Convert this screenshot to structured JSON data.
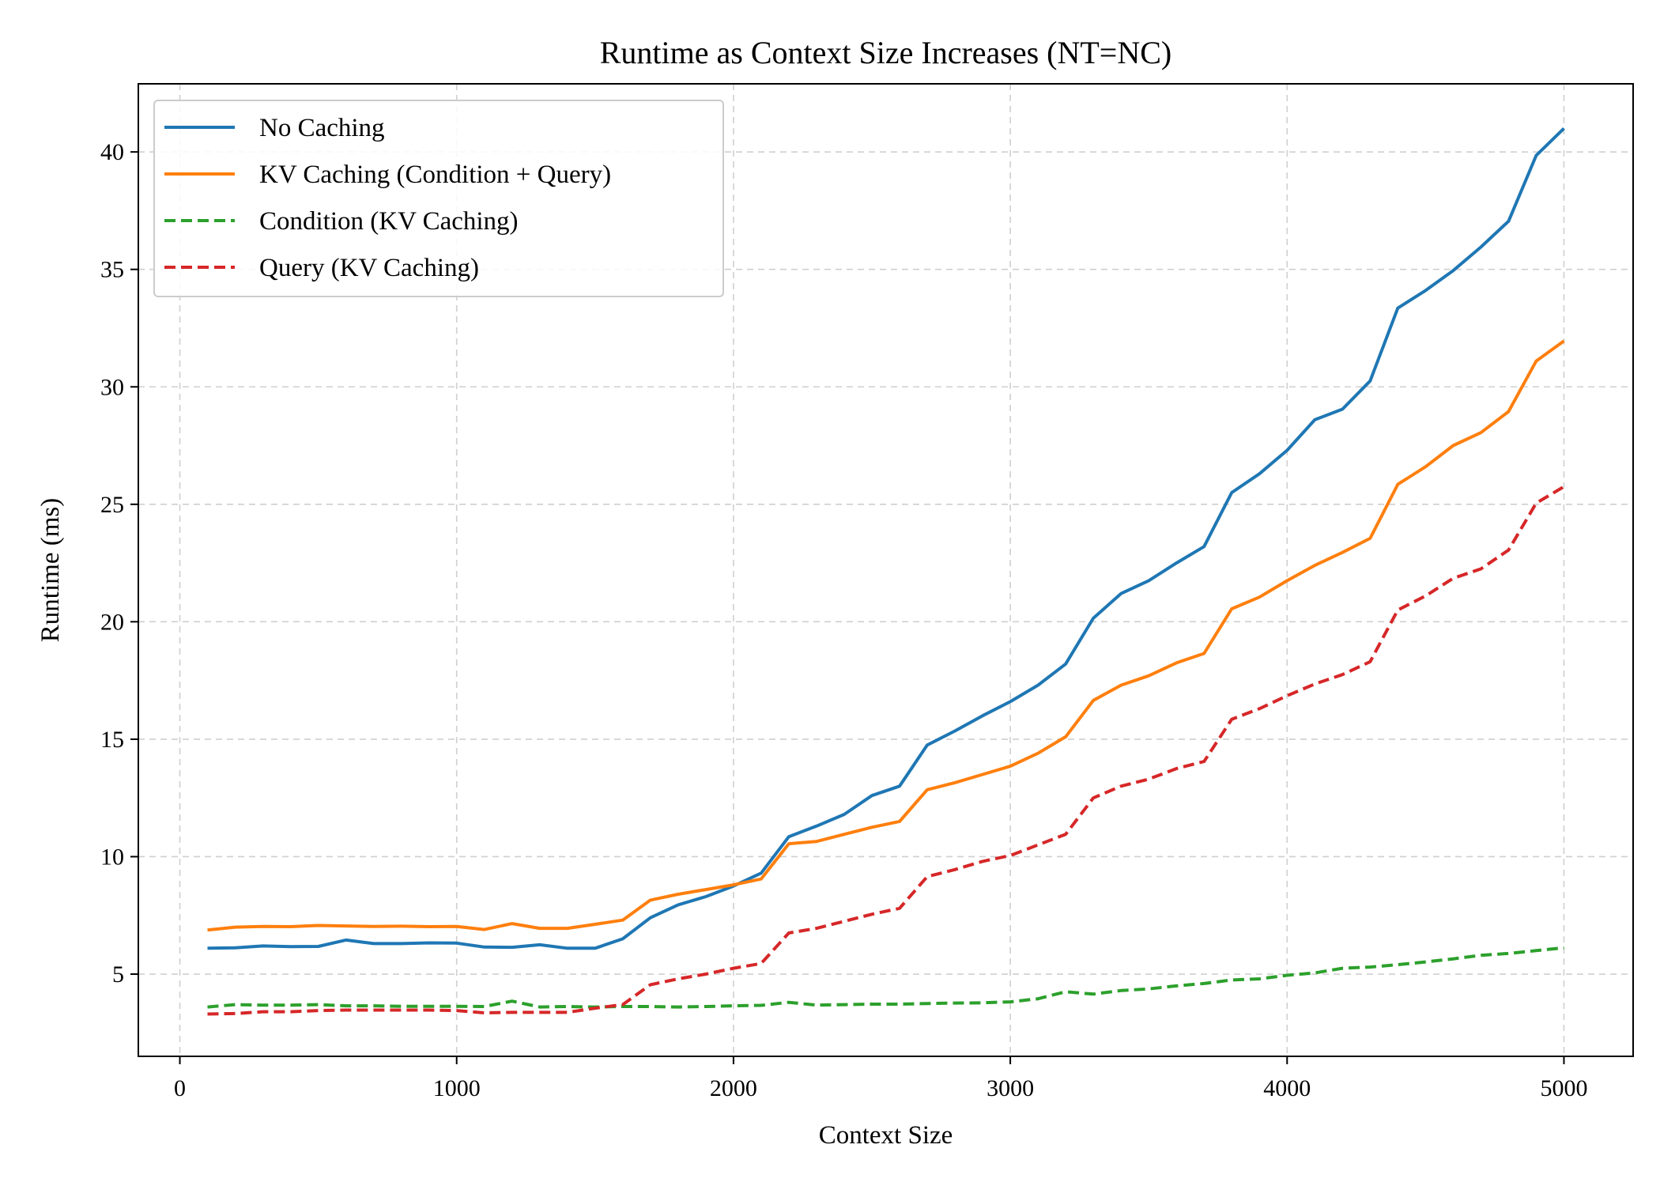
{
  "chart_data": {
    "type": "line",
    "title": "Runtime as Context Size Increases (NT=NC)",
    "xlabel": "Context Size",
    "ylabel": "Runtime (ms)",
    "xlim": [
      -150,
      5250
    ],
    "ylim": [
      1.5,
      42.9
    ],
    "xticks": [
      0,
      1000,
      2000,
      3000,
      4000,
      5000
    ],
    "yticks": [
      5,
      10,
      15,
      20,
      25,
      30,
      35,
      40
    ],
    "grid": true,
    "legend_position": "top-left",
    "x": [
      100,
      200,
      300,
      400,
      500,
      600,
      700,
      800,
      900,
      1000,
      1100,
      1200,
      1300,
      1400,
      1500,
      1600,
      1700,
      1800,
      1900,
      2000,
      2100,
      2200,
      2300,
      2400,
      2500,
      2600,
      2700,
      2800,
      2900,
      3000,
      3100,
      3200,
      3300,
      3400,
      3500,
      3600,
      3700,
      3800,
      3900,
      4000,
      4100,
      4200,
      4300,
      4400,
      4500,
      4600,
      4700,
      4800,
      4900,
      5000
    ],
    "series": [
      {
        "name": "No Caching",
        "color": "#1f77b4",
        "style": "solid",
        "values": [
          6.1,
          6.12,
          6.2,
          6.17,
          6.18,
          6.45,
          6.3,
          6.3,
          6.33,
          6.32,
          6.15,
          6.14,
          6.25,
          6.1,
          6.1,
          6.5,
          7.4,
          7.95,
          8.3,
          8.75,
          9.3,
          10.85,
          11.3,
          11.8,
          12.6,
          13.0,
          14.75,
          15.35,
          16.0,
          16.6,
          17.3,
          18.2,
          20.15,
          21.2,
          21.75,
          22.5,
          23.2,
          25.5,
          26.3,
          27.3,
          28.6,
          29.05,
          30.25,
          33.35,
          34.1,
          34.95,
          35.95,
          37.05,
          39.85,
          41.0
        ]
      },
      {
        "name": "KV Caching (Condition + Query)",
        "color": "#ff7f0e",
        "style": "solid",
        "values": [
          6.88,
          7.0,
          7.03,
          7.02,
          7.07,
          7.05,
          7.03,
          7.04,
          7.02,
          7.03,
          6.9,
          7.15,
          6.95,
          6.95,
          7.12,
          7.3,
          8.15,
          8.4,
          8.6,
          8.8,
          9.05,
          10.55,
          10.65,
          10.95,
          11.25,
          11.5,
          12.85,
          13.15,
          13.5,
          13.85,
          14.4,
          15.1,
          16.65,
          17.3,
          17.7,
          18.25,
          18.65,
          20.55,
          21.05,
          21.75,
          22.4,
          22.95,
          23.55,
          25.85,
          26.6,
          27.5,
          28.05,
          28.95,
          31.1,
          31.95
        ]
      },
      {
        "name": "Condition (KV Caching)",
        "color": "#2ca02c",
        "style": "dashed",
        "values": [
          3.6,
          3.7,
          3.68,
          3.68,
          3.7,
          3.65,
          3.65,
          3.63,
          3.63,
          3.63,
          3.62,
          3.85,
          3.6,
          3.62,
          3.6,
          3.62,
          3.62,
          3.6,
          3.62,
          3.65,
          3.67,
          3.8,
          3.68,
          3.7,
          3.72,
          3.72,
          3.75,
          3.77,
          3.78,
          3.82,
          3.95,
          4.25,
          4.15,
          4.3,
          4.37,
          4.5,
          4.6,
          4.75,
          4.8,
          4.95,
          5.05,
          5.25,
          5.3,
          5.4,
          5.52,
          5.65,
          5.8,
          5.88,
          6.0,
          6.12
        ]
      },
      {
        "name": "Query (KV Caching)",
        "color": "#d62728",
        "style": "dashed",
        "values": [
          3.3,
          3.32,
          3.4,
          3.4,
          3.45,
          3.47,
          3.47,
          3.47,
          3.47,
          3.45,
          3.35,
          3.37,
          3.37,
          3.37,
          3.55,
          3.7,
          4.55,
          4.8,
          5.0,
          5.25,
          5.45,
          6.75,
          6.95,
          7.25,
          7.55,
          7.8,
          9.15,
          9.45,
          9.8,
          10.05,
          10.5,
          10.95,
          12.5,
          13.0,
          13.3,
          13.75,
          14.05,
          15.85,
          16.3,
          16.85,
          17.35,
          17.75,
          18.3,
          20.5,
          21.1,
          21.85,
          22.25,
          23.05,
          25.05,
          25.75
        ]
      }
    ]
  }
}
